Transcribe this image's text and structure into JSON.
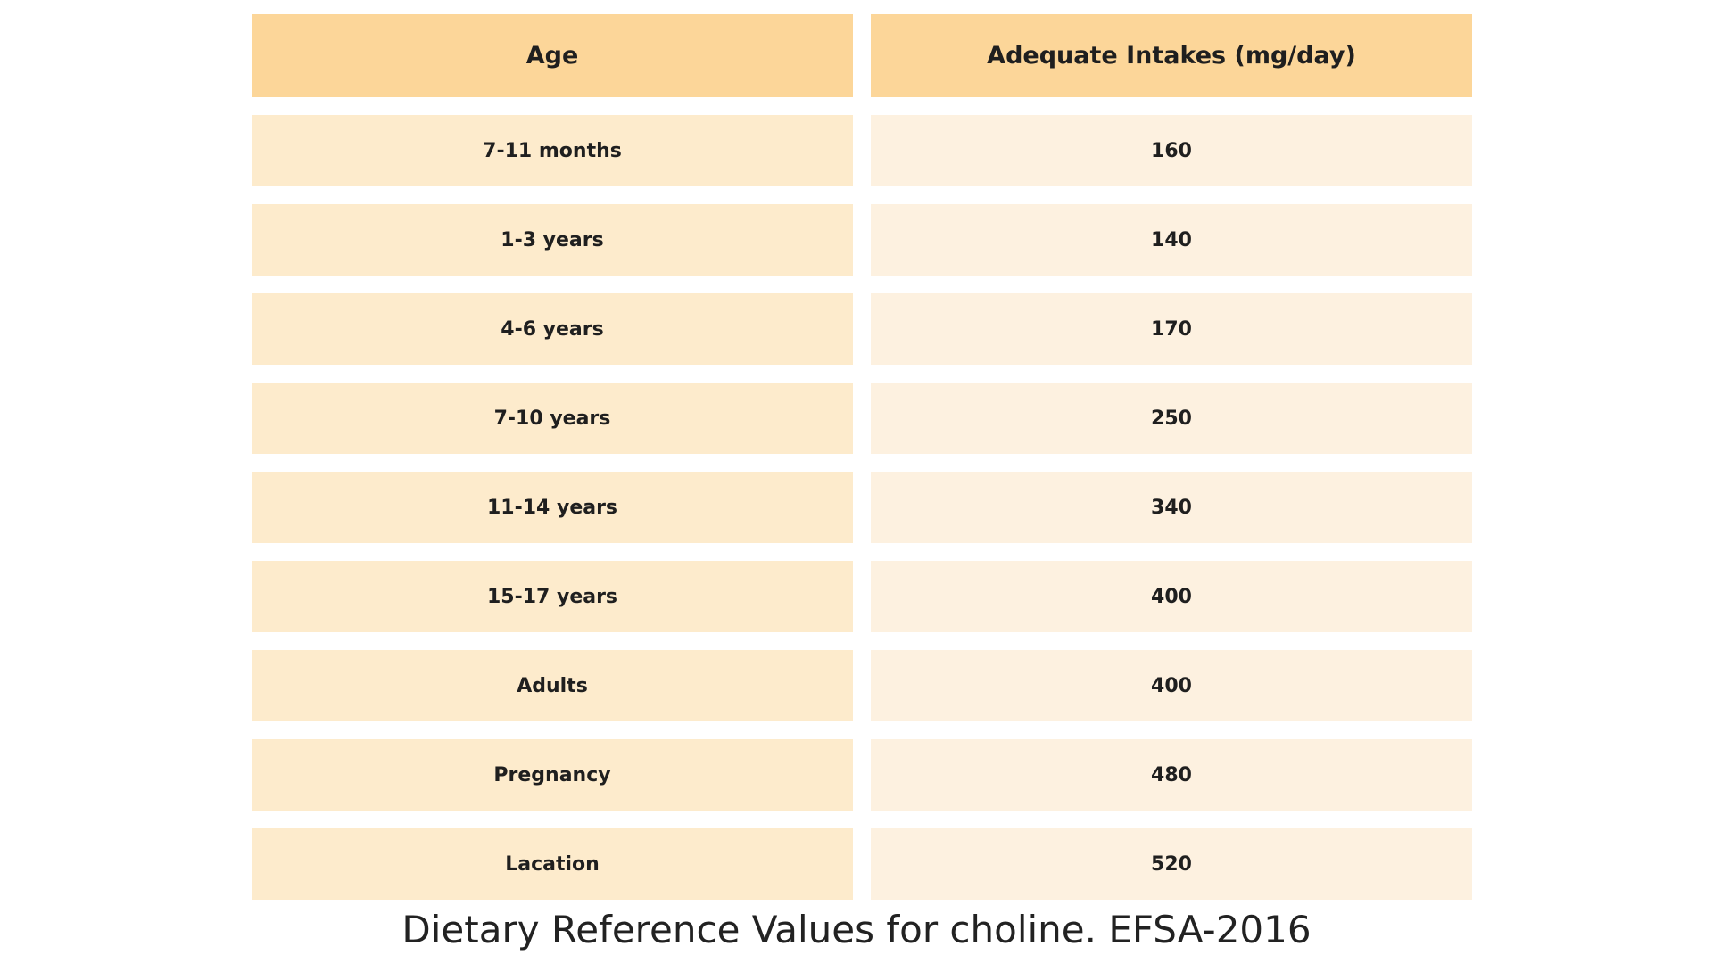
{
  "table": {
    "headers": [
      "Age",
      "Adequate Intakes (mg/day)"
    ],
    "rows": [
      [
        "7-11 months",
        "160"
      ],
      [
        "1-3 years",
        "140"
      ],
      [
        "4-6 years",
        "170"
      ],
      [
        "7-10 years",
        "250"
      ],
      [
        "11-14 years",
        "340"
      ],
      [
        "15-17 years",
        "400"
      ],
      [
        "Adults",
        "400"
      ],
      [
        "Pregnancy",
        "480"
      ],
      [
        "Lacation",
        "520"
      ]
    ]
  },
  "caption": "Dietary Reference Values for choline. EFSA-2016",
  "colors": {
    "header_bg": "#fcd699",
    "age_cell_bg": "#fdebcc",
    "value_cell_bg": "#fdf1e0"
  }
}
